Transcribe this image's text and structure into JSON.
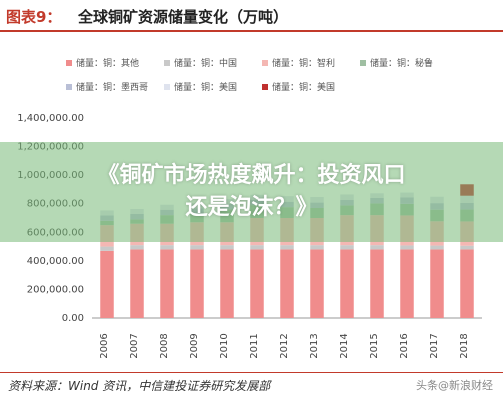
{
  "header": {
    "figure_label": "图表9：",
    "title": "全球铜矿资源储量变化（万吨）"
  },
  "footer": {
    "source": "资料来源：Wind 资讯，中信建投证券研究发展部",
    "watermark": "头条@新浪财经"
  },
  "overlay": {
    "line1": "《铜矿市场热度飙升：投资风口",
    "line2": "还是泡沫？》"
  },
  "chart_data": {
    "type": "bar",
    "stacked": true,
    "categories": [
      "2006",
      "2007",
      "2008",
      "2009",
      "2010",
      "2011",
      "2012",
      "2013",
      "2014",
      "2015",
      "2016",
      "2017",
      "2018"
    ],
    "ylim": [
      0,
      1400000
    ],
    "y_ticks": [
      "0.00",
      "200,000.00",
      "400,000.00",
      "600,000.00",
      "800,000.00",
      "1,000,000.00",
      "1,200,000.00",
      "1,400,000.00"
    ],
    "y_tick_values": [
      0,
      200000,
      400000,
      600000,
      800000,
      1000000,
      1200000,
      1400000
    ],
    "grid": false,
    "legend_position": "top",
    "series": [
      {
        "name": "储量：铜：其他",
        "color": "#f08c8c",
        "values": [
          470000,
          480000,
          480000,
          480000,
          480000,
          480000,
          480000,
          480000,
          480000,
          480000,
          480000,
          480000,
          480000
        ]
      },
      {
        "name": "储量：铜：中国",
        "color": "#c9c9c9",
        "values": [
          30000,
          30000,
          30000,
          30000,
          30000,
          30000,
          30000,
          30000,
          30000,
          30000,
          28000,
          27000,
          26000
        ]
      },
      {
        "name": "储量：铜：智利",
        "color": "#f4b7b3",
        "values": [
          150000,
          150000,
          150000,
          160000,
          160000,
          190000,
          190000,
          190000,
          210000,
          210000,
          210000,
          170000,
          170000
        ]
      },
      {
        "name": "储量：铜：秘鲁",
        "color": "#9fbfa2",
        "values": [
          30000,
          30000,
          60000,
          60000,
          90000,
          90000,
          76000,
          70000,
          68000,
          82000,
          81000,
          81000,
          83000
        ]
      },
      {
        "name": "储量：铜：墨西哥",
        "color": "#b9bfd6",
        "values": [
          38000,
          38000,
          38000,
          38000,
          38000,
          38000,
          38000,
          38000,
          38000,
          38000,
          46000,
          46000,
          46000
        ]
      },
      {
        "name": "储量：铜：美国",
        "color": "#dfe3ee",
        "values": [
          35000,
          35000,
          35000,
          35000,
          35000,
          35000,
          39000,
          39000,
          39000,
          33000,
          33000,
          45000,
          51000
        ]
      },
      {
        "name": "储量：铜：美国",
        "color": "#c0302f",
        "values": [
          0,
          0,
          0,
          0,
          0,
          0,
          0,
          0,
          0,
          0,
          0,
          0,
          80000
        ]
      }
    ]
  }
}
